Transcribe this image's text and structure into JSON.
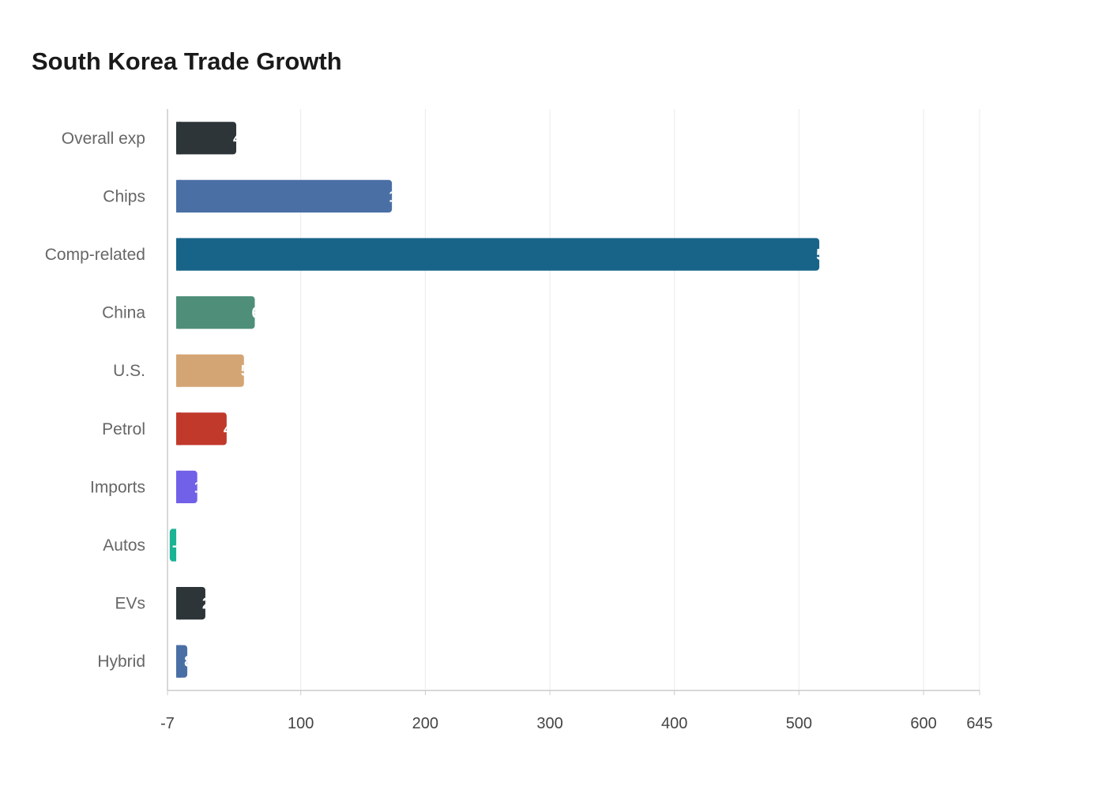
{
  "chart_data": {
    "type": "bar",
    "orientation": "horizontal",
    "title": "South Korea Trade Growth",
    "xlabel": "",
    "ylabel": "",
    "xlim": [
      -7,
      645
    ],
    "x_ticks": [
      -7,
      100,
      200,
      300,
      400,
      500,
      600,
      645
    ],
    "grid": true,
    "categories": [
      "Overall exp",
      "Chips",
      "Comp-related",
      "China",
      "U.S.",
      "Petrol",
      "Imports",
      "Autos",
      "EVs",
      "Hybrid"
    ],
    "values": [
      48.2,
      173.2,
      516.3,
      63.1,
      54.4,
      40.5,
      16.9,
      -5.2,
      23.4,
      8.9
    ],
    "colors": [
      "#2d3538",
      "#4a6fa5",
      "#186489",
      "#4f8f7a",
      "#d4a574",
      "#c0392b",
      "#7160e8",
      "#1ab394",
      "#2d3538",
      "#4a6fa5"
    ]
  }
}
